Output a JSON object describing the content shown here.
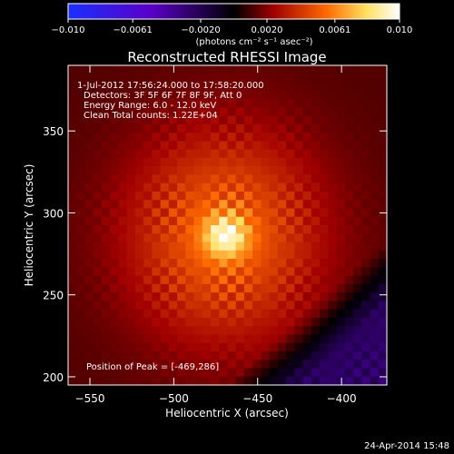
{
  "chart_data": {
    "type": "heatmap",
    "title": "Reconstructed RHESSI Image",
    "xlabel": "Heliocentric X (arcsec)",
    "ylabel": "Heliocentric Y (arcsec)",
    "xlim": [
      -563,
      -373
    ],
    "ylim": [
      195,
      390
    ],
    "x_ticks": [
      -550,
      -500,
      -450,
      -400
    ],
    "y_ticks": [
      200,
      250,
      300,
      350
    ],
    "x_tick_labels": [
      "−550",
      "−500",
      "−450",
      "−400"
    ],
    "y_tick_labels": [
      "200",
      "250",
      "300",
      "350"
    ],
    "colorbar": {
      "range": [
        -0.01,
        0.01
      ],
      "ticks": [
        -0.01,
        -0.0061,
        -0.002,
        0.002,
        0.0061,
        0.01
      ],
      "tick_labels": [
        "−0.010",
        "−0.0061",
        "−0.0020",
        "0.0020",
        "0.0061",
        "0.010"
      ],
      "units_label": "(photons cm⁻² s⁻¹ asec⁻²)",
      "colors": [
        "#1a2fff",
        "#5a00c8",
        "#000000",
        "#a00000",
        "#ff6a00",
        "#ffe060",
        "#ffffff"
      ]
    },
    "info_lines": [
      " 1-Jul-2012 17:56:24.000 to 17:58:20.000",
      "Detectors: 3F 5F 6F 7F 8F 9F, Att 0",
      "Energy Range: 6.0 - 12.0 keV",
      "Clean    Total counts: 1.22E+04"
    ],
    "peak_text": "Position of Peak = [-469,286]",
    "peak": {
      "x": -469,
      "y": 286,
      "value": 0.01
    },
    "source": {
      "center": [
        -470,
        286
      ],
      "sigma_x": 40,
      "sigma_y": 45
    }
  },
  "footer": {
    "timestamp": "24-Apr-2014 15:48"
  }
}
